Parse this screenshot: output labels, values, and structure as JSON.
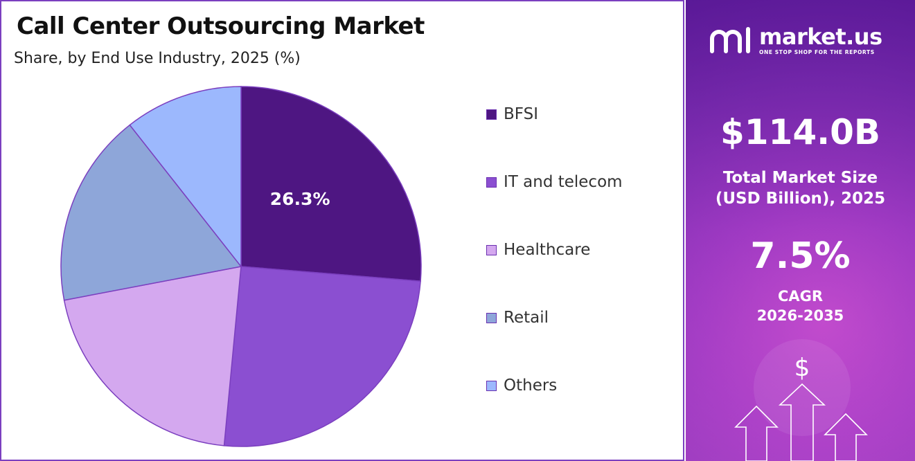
{
  "title": "Call Center Outsourcing Market",
  "subtitle": "Share, by End Use Industry, 2025 (%)",
  "chart_data": {
    "type": "pie",
    "categories": [
      "BFSI",
      "IT and telecom",
      "Healthcare",
      "Retail",
      "Others"
    ],
    "values": [
      26.3,
      25.2,
      20.5,
      17.4,
      10.6
    ],
    "data_labels": [
      "26.3%",
      "",
      "",
      "",
      ""
    ],
    "colors": [
      "#4e1682",
      "#8b4fd1",
      "#d4a8ef",
      "#8ea6d9",
      "#9cb8fd"
    ],
    "legend_position": "right",
    "start_angle": "top, clockwise"
  },
  "brand": {
    "name": "market.us",
    "tagline": "ONE STOP SHOP FOR THE REPORTS"
  },
  "stats": {
    "market_size": "$114.0B",
    "market_size_label_line1": "Total Market Size",
    "market_size_label_line2": "(USD Billion), 2025",
    "cagr": "7.5%",
    "cagr_label_line1": "CAGR",
    "cagr_label_line2": "2026-2035"
  },
  "colors": {
    "accent": "#7b3fbf",
    "panel_dark": "#5a1f98",
    "panel_light": "#c94fcf"
  },
  "icons": [
    "dollar-icon",
    "up-arrow-icon"
  ],
  "deco_symbol": "$"
}
